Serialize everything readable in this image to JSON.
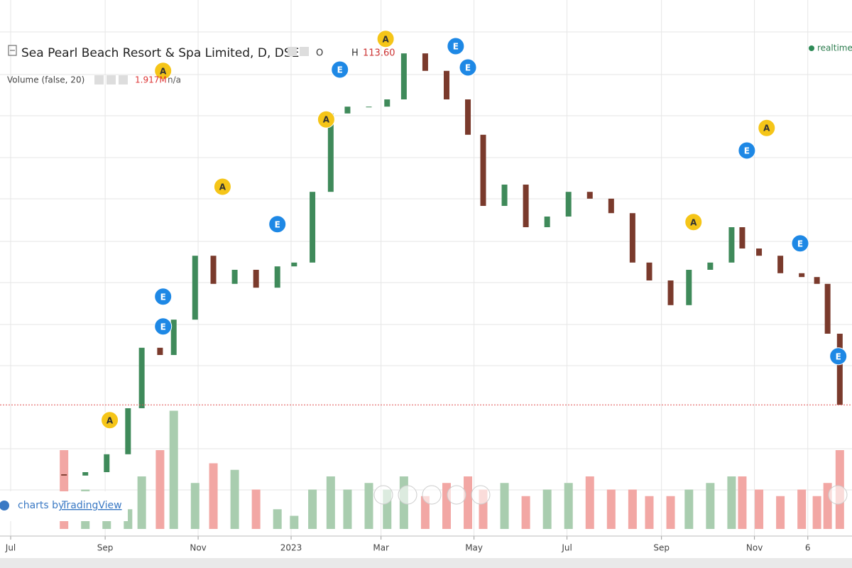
{
  "chart_data": {
    "type": "candlestick",
    "title": "Sea Pearl Beach Resort & Spa Limited, D, DSE",
    "ohlc_labels": [
      "O",
      "H",
      "113.60"
    ],
    "indicator": "Volume (false, 20)",
    "indicator_values": [
      "1.917M",
      "n/a"
    ],
    "status": "realtime",
    "watermark": [
      "charts by",
      "TradingView"
    ],
    "xlim": [
      -7,
      552
    ],
    "ylim": [
      20,
      130
    ],
    "volume_ylim": [
      0,
      100
    ],
    "xticks": [
      {
        "value": 0,
        "label": "Jul"
      },
      {
        "value": 62,
        "label": "Sep"
      },
      {
        "value": 123,
        "label": "Nov"
      },
      {
        "value": 184,
        "label": "2023"
      },
      {
        "value": 243,
        "label": "Mar"
      },
      {
        "value": 304,
        "label": "May"
      },
      {
        "value": 365,
        "label": "Jul"
      },
      {
        "value": 427,
        "label": "Sep"
      },
      {
        "value": 488,
        "label": "Nov"
      },
      {
        "value": 523,
        "label": "6"
      }
    ],
    "x": [
      35,
      49,
      63,
      77,
      86,
      98,
      107,
      121,
      133,
      147,
      161,
      175,
      186,
      198,
      210,
      221,
      235,
      247,
      258,
      272,
      286,
      300,
      310,
      324,
      338,
      352,
      366,
      380,
      394,
      408,
      419,
      433,
      445,
      459,
      473,
      480,
      491,
      505,
      519,
      529,
      536,
      544
    ],
    "open": [
      22,
      21.7,
      22.5,
      26.7,
      37.5,
      51.7,
      50,
      58.3,
      73.3,
      66.7,
      70,
      65.8,
      70.8,
      71.7,
      88.3,
      106.7,
      108.3,
      108.3,
      110,
      120.8,
      116.7,
      110,
      101.7,
      85,
      90,
      80,
      82.5,
      88.3,
      86.7,
      83.3,
      71.7,
      67.5,
      61.7,
      70,
      71.7,
      80,
      75,
      73.3,
      69.2,
      68.3,
      66.7,
      55
    ],
    "close": [
      21.7,
      22.5,
      26.7,
      37.5,
      51.7,
      50,
      58.3,
      73.3,
      66.7,
      70,
      65.8,
      70.8,
      71.7,
      88.3,
      106.7,
      108.3,
      108.3,
      110,
      120.8,
      116.7,
      110,
      101.7,
      85,
      90,
      80,
      82.5,
      88.3,
      86.7,
      83.3,
      71.7,
      67.5,
      61.7,
      70,
      71.7,
      80,
      75,
      73.3,
      69.2,
      68.3,
      66.7,
      55,
      38.3
    ],
    "volume": [
      60,
      30,
      20,
      15,
      40,
      60,
      90,
      35,
      50,
      45,
      30,
      15,
      10,
      30,
      40,
      30,
      35,
      30,
      40,
      25,
      35,
      40,
      30,
      35,
      25,
      30,
      35,
      40,
      30,
      30,
      25,
      25,
      30,
      35,
      40,
      40,
      30,
      25,
      30,
      25,
      35,
      60
    ],
    "up_color": "#3f8a5a",
    "down_color": "#7a3a2c",
    "volume_up_color": "#a9cdaf",
    "volume_down_color": "#f2a7a4",
    "last_price_color": "#e05050",
    "events": [
      {
        "x": 65,
        "price": 34.7,
        "label": "A"
      },
      {
        "x": 100,
        "price": 56.7,
        "label": "E"
      },
      {
        "x": 100,
        "price": 63.7,
        "label": "E"
      },
      {
        "x": 100,
        "price": 116.7,
        "label": "A"
      },
      {
        "x": 139,
        "price": 89.5,
        "label": "A"
      },
      {
        "x": 175,
        "price": 80.7,
        "label": "E"
      },
      {
        "x": 207,
        "price": 105.3,
        "label": "A"
      },
      {
        "x": 216,
        "price": 117,
        "label": "E"
      },
      {
        "x": 246,
        "price": 124.2,
        "label": "A"
      },
      {
        "x": 292,
        "price": 122.5,
        "label": "E"
      },
      {
        "x": 300,
        "price": 117.5,
        "label": "E"
      },
      {
        "x": 448,
        "price": 81.2,
        "label": "A"
      },
      {
        "x": 483,
        "price": 98,
        "label": "E"
      },
      {
        "x": 496,
        "price": 103.3,
        "label": "A"
      },
      {
        "x": 518,
        "price": 76.2,
        "label": "E"
      },
      {
        "x": 543,
        "price": 49.7,
        "label": "E"
      }
    ]
  }
}
